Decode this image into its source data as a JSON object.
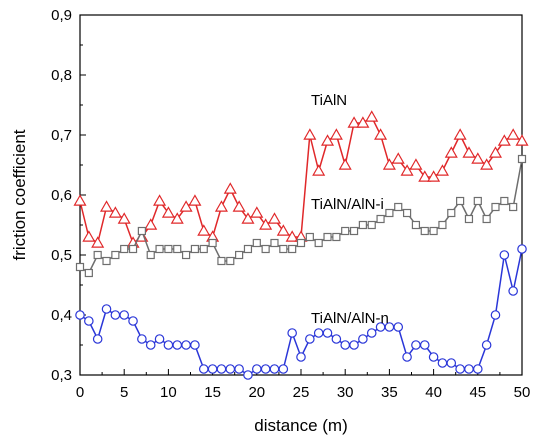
{
  "chart_data": {
    "type": "line",
    "xlabel": "distance (m)",
    "ylabel": "friction coefficient",
    "xlim": [
      0,
      50
    ],
    "ylim": [
      0.3,
      0.9
    ],
    "xticks": [
      "0",
      "5",
      "10",
      "15",
      "20",
      "25",
      "30",
      "35",
      "40",
      "45",
      "50"
    ],
    "yticks": [
      "0,3",
      "0,4",
      "0,5",
      "0,6",
      "0,7",
      "0,8",
      "0,9"
    ],
    "grid": false,
    "series": [
      {
        "name": "TiAlN",
        "marker": "triangle",
        "color": "#e0282a",
        "x": [
          0,
          1,
          2,
          3,
          4,
          5,
          6,
          7,
          8,
          9,
          10,
          11,
          12,
          13,
          14,
          15,
          16,
          17,
          18,
          19,
          20,
          21,
          22,
          23,
          24,
          25,
          26,
          27,
          28,
          29,
          30,
          31,
          32,
          33,
          34,
          35,
          36,
          37,
          38,
          39,
          40,
          41,
          42,
          43,
          44,
          45,
          46,
          47,
          48,
          49,
          50
        ],
        "values": [
          0.59,
          0.53,
          0.52,
          0.58,
          0.57,
          0.56,
          0.52,
          0.53,
          0.55,
          0.59,
          0.57,
          0.56,
          0.58,
          0.59,
          0.54,
          0.53,
          0.58,
          0.61,
          0.58,
          0.56,
          0.57,
          0.55,
          0.56,
          0.54,
          0.53,
          0.53,
          0.7,
          0.64,
          0.69,
          0.7,
          0.65,
          0.72,
          0.72,
          0.73,
          0.7,
          0.65,
          0.66,
          0.64,
          0.65,
          0.63,
          0.63,
          0.64,
          0.67,
          0.7,
          0.67,
          0.66,
          0.65,
          0.67,
          0.69,
          0.7,
          0.69
        ]
      },
      {
        "name": "TiAlN/AlN-i",
        "marker": "square",
        "color": "#6e6e6e",
        "x": [
          0,
          1,
          2,
          3,
          4,
          5,
          6,
          7,
          8,
          9,
          10,
          11,
          12,
          13,
          14,
          15,
          16,
          17,
          18,
          19,
          20,
          21,
          22,
          23,
          24,
          25,
          26,
          27,
          28,
          29,
          30,
          31,
          32,
          33,
          34,
          35,
          36,
          37,
          38,
          39,
          40,
          41,
          42,
          43,
          44,
          45,
          46,
          47,
          48,
          49,
          50
        ],
        "values": [
          0.48,
          0.47,
          0.5,
          0.49,
          0.5,
          0.51,
          0.51,
          0.54,
          0.5,
          0.51,
          0.51,
          0.51,
          0.5,
          0.51,
          0.51,
          0.52,
          0.49,
          0.49,
          0.5,
          0.51,
          0.52,
          0.51,
          0.52,
          0.51,
          0.51,
          0.52,
          0.53,
          0.52,
          0.53,
          0.53,
          0.54,
          0.54,
          0.55,
          0.55,
          0.56,
          0.57,
          0.58,
          0.57,
          0.55,
          0.54,
          0.54,
          0.55,
          0.57,
          0.59,
          0.56,
          0.59,
          0.56,
          0.58,
          0.59,
          0.58,
          0.66
        ]
      },
      {
        "name": "TiAlN/AlN-n",
        "marker": "circle",
        "color": "#2a36d8",
        "x": [
          0,
          1,
          2,
          3,
          4,
          5,
          6,
          7,
          8,
          9,
          10,
          11,
          12,
          13,
          14,
          15,
          16,
          17,
          18,
          19,
          20,
          21,
          22,
          23,
          24,
          25,
          26,
          27,
          28,
          29,
          30,
          31,
          32,
          33,
          34,
          35,
          36,
          37,
          38,
          39,
          40,
          41,
          42,
          43,
          44,
          45,
          46,
          47,
          48,
          49,
          50
        ],
        "values": [
          0.4,
          0.39,
          0.36,
          0.41,
          0.4,
          0.4,
          0.39,
          0.36,
          0.35,
          0.36,
          0.35,
          0.35,
          0.35,
          0.35,
          0.31,
          0.31,
          0.31,
          0.31,
          0.31,
          0.3,
          0.31,
          0.31,
          0.31,
          0.31,
          0.37,
          0.33,
          0.36,
          0.37,
          0.37,
          0.36,
          0.35,
          0.35,
          0.36,
          0.37,
          0.38,
          0.38,
          0.38,
          0.33,
          0.35,
          0.35,
          0.33,
          0.32,
          0.32,
          0.31,
          0.31,
          0.31,
          0.35,
          0.4,
          0.5,
          0.44,
          0.51
        ]
      }
    ]
  }
}
